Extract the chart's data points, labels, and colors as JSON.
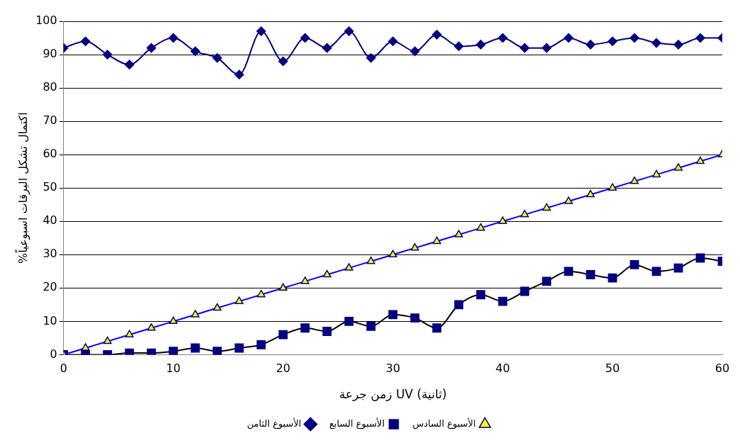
{
  "chart_data": {
    "type": "line",
    "xlabel": "زمن جرعة UV (ثانية)",
    "ylabel": "%اكتمال تشكل اليرقات اسبوعياً",
    "x": [
      0,
      2,
      4,
      6,
      8,
      10,
      12,
      14,
      16,
      18,
      20,
      22,
      24,
      26,
      28,
      30,
      32,
      34,
      36,
      38,
      40,
      42,
      44,
      46,
      48,
      50,
      52,
      54,
      56,
      58,
      60
    ],
    "xlim": [
      0,
      60
    ],
    "xticks": [
      0,
      10,
      20,
      30,
      40,
      50,
      60
    ],
    "ylim": [
      0,
      100
    ],
    "yticks": [
      0,
      10,
      20,
      30,
      40,
      50,
      60,
      70,
      80,
      90,
      100
    ],
    "grid": "y",
    "legend": "bottom",
    "series": [
      {
        "name": "الأسبوع السادس",
        "color": "#ffff00",
        "marker": "triangle",
        "values": [
          0,
          2,
          4,
          6,
          8,
          10,
          12,
          14,
          16,
          18,
          20,
          22,
          24,
          26,
          28,
          30,
          32,
          34,
          36,
          38,
          40,
          42,
          44,
          46,
          48,
          50,
          52,
          54,
          56,
          58,
          60
        ]
      },
      {
        "name": "الأسبوع السابع",
        "color": "#000080",
        "marker": "square",
        "values": [
          0,
          0,
          0,
          0.5,
          0.5,
          1,
          2,
          1,
          2,
          3,
          6,
          8,
          7,
          10,
          8.5,
          12,
          11,
          8,
          15,
          18,
          16,
          19,
          22,
          25,
          24,
          23,
          27,
          25,
          26,
          29,
          28
        ]
      },
      {
        "name": "الأسبوع الثامن",
        "color": "#000080",
        "marker": "diamond",
        "values": [
          92,
          94,
          90,
          87,
          92,
          95,
          91,
          89,
          84,
          97,
          88,
          95,
          92,
          97,
          89,
          94,
          91,
          96,
          92.5,
          93,
          95,
          92,
          92,
          95,
          93,
          94,
          95,
          93.5,
          93,
          95,
          95
        ]
      }
    ]
  }
}
